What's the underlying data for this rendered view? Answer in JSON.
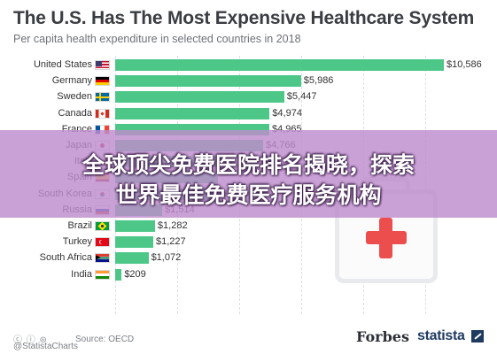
{
  "title": "The U.S. Has The Most Expensive Healthcare System",
  "subtitle": "Per capita health expenditure in selected countries in 2018",
  "overlay": {
    "line1": "全球顶尖免费医院排名揭晓，探索",
    "line2": "世界最佳免费医疗服务机构"
  },
  "footer": {
    "cc_mark": "ⓒ ⓘ ⊜",
    "credit": "@StatistaCharts",
    "source": "Source: OECD",
    "brand_forbes": "Forbes",
    "brand_statista": "statista"
  },
  "flags": {
    "United States": "us",
    "Germany": "de",
    "Sweden": "se",
    "Canada": "ca",
    "France": "fr",
    "Japan": "jp",
    "Italy": "it",
    "Spain": "es",
    "South Korea": "kr",
    "Russia": "ru",
    "Brazil": "br",
    "Turkey": "tr",
    "South Africa": "za",
    "India": "in"
  },
  "colors": {
    "bar": "#4cc788",
    "overlay": "#be8ccd",
    "cross": "#ec4d4d"
  },
  "chart_data": {
    "type": "bar",
    "orientation": "horizontal",
    "title": "The U.S. Has The Most Expensive Healthcare System",
    "subtitle": "Per capita health expenditure in selected countries in 2018",
    "categories": [
      "United States",
      "Germany",
      "Sweden",
      "Canada",
      "France",
      "Japan",
      "Italy",
      "Spain",
      "South Korea",
      "Russia",
      "Brazil",
      "Turkey",
      "South Africa",
      "India"
    ],
    "values": [
      10586,
      5986,
      5447,
      4974,
      4965,
      4766,
      3428,
      3323,
      3192,
      1514,
      1282,
      1227,
      1072,
      209
    ],
    "labels": [
      "$10,586",
      "$5,986",
      "$5,447",
      "$4,974",
      "$4,965",
      "$4,766",
      "",
      "",
      "$3,192",
      "$1,514",
      "$1,282",
      "$1,227",
      "$1,072",
      "$209"
    ],
    "xlim": [
      0,
      10586
    ],
    "grid": true
  }
}
